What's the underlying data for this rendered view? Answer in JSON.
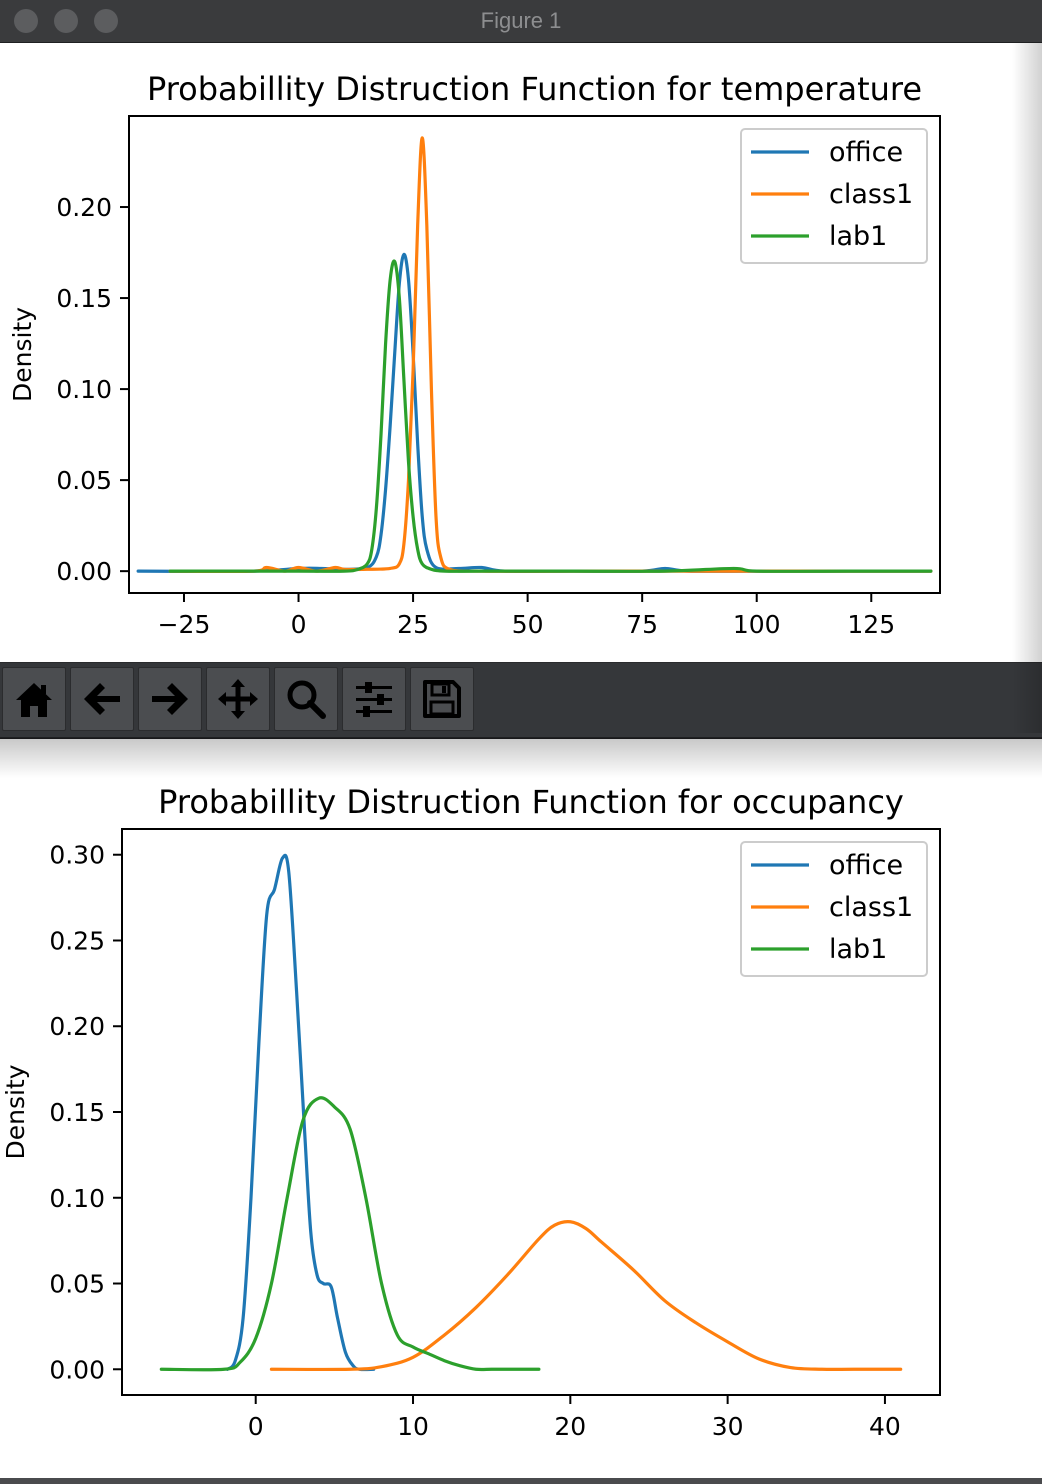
{
  "window": {
    "title": "Figure 1"
  },
  "toolbar": {
    "buttons": [
      {
        "name": "home-button",
        "icon": "home-icon"
      },
      {
        "name": "back-button",
        "icon": "arrow-left-icon"
      },
      {
        "name": "forward-button",
        "icon": "arrow-right-icon"
      },
      {
        "name": "pan-button",
        "icon": "move-icon"
      },
      {
        "name": "zoom-button",
        "icon": "magnifier-icon"
      },
      {
        "name": "configure-subplots-button",
        "icon": "sliders-icon"
      },
      {
        "name": "save-button",
        "icon": "floppy-disk-icon"
      }
    ]
  },
  "chart_data": [
    {
      "type": "line",
      "title": "Probabillity Distruction Function for temperature",
      "xlabel": "",
      "ylabel": "Density",
      "xlim": [
        -37,
        140
      ],
      "ylim": [
        -0.012,
        0.25
      ],
      "xticks": [
        -25,
        0,
        25,
        50,
        75,
        100,
        125
      ],
      "xtick_labels": [
        "−25",
        "0",
        "25",
        "50",
        "75",
        "100",
        "125"
      ],
      "yticks": [
        0.0,
        0.05,
        0.1,
        0.15,
        0.2
      ],
      "ytick_labels": [
        "0.00",
        "0.05",
        "0.10",
        "0.15",
        "0.20"
      ],
      "grid": false,
      "legend_position": "top-right",
      "series": [
        {
          "name": "office",
          "color": "#1f77b4",
          "x": [
            -35,
            -10,
            0,
            5,
            10,
            15,
            17,
            18,
            19,
            20,
            21,
            22,
            23,
            24,
            25,
            26,
            27,
            28,
            30,
            35,
            40,
            45,
            60,
            75,
            80,
            85,
            100,
            120,
            138
          ],
          "y": [
            0.0,
            0.0,
            0.0015,
            0.0015,
            0.001,
            0.002,
            0.008,
            0.02,
            0.045,
            0.08,
            0.12,
            0.158,
            0.174,
            0.16,
            0.12,
            0.07,
            0.03,
            0.012,
            0.002,
            0.0015,
            0.002,
            0.0,
            0.0,
            0.0,
            0.0015,
            0.0,
            0.0,
            0.0,
            0.0
          ]
        },
        {
          "name": "class1",
          "color": "#ff7f0e",
          "x": [
            -28,
            -10,
            -7,
            -3,
            0,
            4,
            8,
            10,
            15,
            20,
            22,
            23,
            24,
            25,
            26,
            27,
            28,
            29,
            30,
            31,
            33,
            40,
            60,
            80,
            100,
            120,
            138
          ],
          "y": [
            0.0,
            0.0,
            0.002,
            0.0,
            0.002,
            0.0,
            0.002,
            0.001,
            0.001,
            0.0015,
            0.004,
            0.015,
            0.05,
            0.11,
            0.19,
            0.238,
            0.19,
            0.1,
            0.03,
            0.008,
            0.001,
            0.0,
            0.0,
            0.0,
            0.0,
            0.0,
            0.0
          ]
        },
        {
          "name": "lab1",
          "color": "#2ca02c",
          "x": [
            -28,
            0,
            10,
            13,
            15,
            16,
            17,
            18,
            19,
            20,
            21,
            22,
            23,
            24,
            25,
            26,
            27,
            29,
            32,
            40,
            60,
            80,
            95,
            100,
            120,
            138
          ],
          "y": [
            0.0,
            0.0,
            0.0,
            0.001,
            0.004,
            0.012,
            0.035,
            0.075,
            0.125,
            0.16,
            0.17,
            0.15,
            0.105,
            0.06,
            0.03,
            0.012,
            0.004,
            0.001,
            0.0,
            0.0,
            0.0,
            0.0,
            0.0015,
            0.0,
            0.0,
            0.0
          ]
        }
      ]
    },
    {
      "type": "line",
      "title": "Probabillity Distruction Function for occupancy",
      "xlabel": "",
      "ylabel": "Density",
      "xlim": [
        -8.5,
        43.5
      ],
      "ylim": [
        -0.015,
        0.315
      ],
      "xticks": [
        0,
        10,
        20,
        30,
        40
      ],
      "xtick_labels": [
        "0",
        "10",
        "20",
        "30",
        "40"
      ],
      "yticks": [
        0.0,
        0.05,
        0.1,
        0.15,
        0.2,
        0.25,
        0.3
      ],
      "ytick_labels": [
        "0.00",
        "0.05",
        "0.10",
        "0.15",
        "0.20",
        "0.25",
        "0.30"
      ],
      "grid": false,
      "legend_position": "top-right",
      "series": [
        {
          "name": "office",
          "color": "#1f77b4",
          "x": [
            -1.8,
            -1.3,
            -0.8,
            -0.3,
            0.2,
            0.7,
            1.2,
            1.7,
            2.1,
            2.6,
            3.1,
            3.5,
            3.9,
            4.3,
            4.8,
            5.2,
            5.7,
            6.2,
            6.6,
            7.5
          ],
          "y": [
            0.0,
            0.005,
            0.03,
            0.1,
            0.19,
            0.265,
            0.28,
            0.298,
            0.29,
            0.22,
            0.14,
            0.08,
            0.055,
            0.05,
            0.048,
            0.03,
            0.01,
            0.002,
            0.0,
            0.0
          ]
        },
        {
          "name": "class1",
          "color": "#ff7f0e",
          "x": [
            1,
            6,
            8,
            10,
            12,
            14,
            16,
            18,
            19,
            20,
            21,
            22,
            24,
            26,
            28,
            30,
            32,
            34,
            36,
            38,
            41
          ],
          "y": [
            0.0,
            0.0,
            0.0015,
            0.007,
            0.02,
            0.036,
            0.055,
            0.076,
            0.084,
            0.086,
            0.082,
            0.074,
            0.058,
            0.04,
            0.027,
            0.016,
            0.006,
            0.001,
            0.0,
            0.0,
            0.0
          ]
        },
        {
          "name": "lab1",
          "color": "#2ca02c",
          "x": [
            -6,
            -2,
            -1,
            0,
            1,
            2,
            3,
            4,
            5,
            6,
            7,
            8,
            9,
            10,
            11,
            12,
            13,
            14,
            15,
            16,
            18
          ],
          "y": [
            0.0,
            0.0,
            0.004,
            0.018,
            0.05,
            0.1,
            0.145,
            0.158,
            0.153,
            0.14,
            0.1,
            0.05,
            0.02,
            0.013,
            0.009,
            0.005,
            0.002,
            0.0,
            0.0,
            0.0,
            0.0
          ]
        }
      ]
    }
  ]
}
